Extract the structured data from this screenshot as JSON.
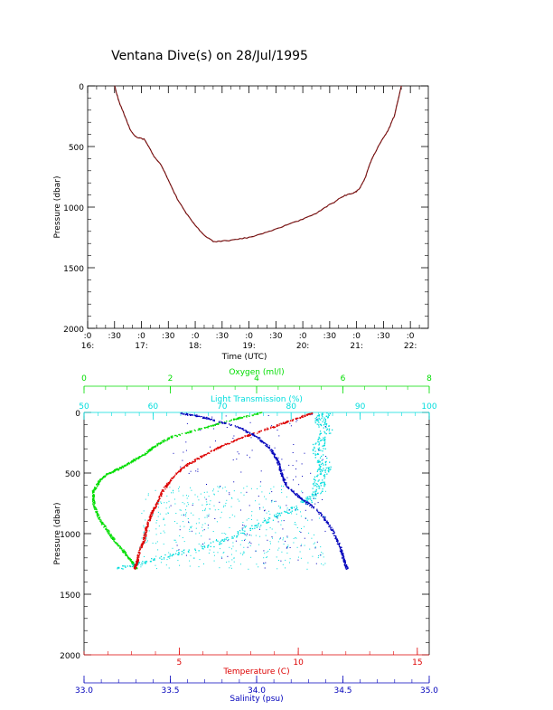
{
  "title": "Ventana Dive(s) on 28/Jul/1995",
  "chart_data": [
    {
      "type": "line",
      "ylabel": "Pressure (dbar)",
      "xlabel": "Time (UTC)",
      "ylim": [
        2000,
        0
      ],
      "xlim": [
        "16:00",
        "22:20"
      ],
      "yticks": [
        "0",
        "500",
        "1000",
        "1500",
        "2000"
      ],
      "xticks": [
        {
          "top": ":0",
          "bottom": "16:"
        },
        {
          "top": ":30",
          "bottom": ""
        },
        {
          "top": ":0",
          "bottom": "17:"
        },
        {
          "top": ":30",
          "bottom": ""
        },
        {
          "top": ":0",
          "bottom": "18:"
        },
        {
          "top": ":30",
          "bottom": ""
        },
        {
          "top": ":0",
          "bottom": "19:"
        },
        {
          "top": ":30",
          "bottom": ""
        },
        {
          "top": ":0",
          "bottom": "20:"
        },
        {
          "top": ":30",
          "bottom": ""
        },
        {
          "top": ":0",
          "bottom": "21:"
        },
        {
          "top": ":30",
          "bottom": ""
        },
        {
          "top": ":0",
          "bottom": "22:"
        }
      ],
      "series": [
        {
          "color": "#8b1a1a",
          "x": [
            "16:30",
            "16:35",
            "16:42",
            "16:48",
            "16:54",
            "17:03",
            "17:08",
            "17:14",
            "17:22",
            "17:30",
            "17:40",
            "17:50",
            "18:00",
            "18:10",
            "18:20",
            "18:30",
            "18:45",
            "19:00",
            "19:15",
            "19:30",
            "19:45",
            "20:00",
            "20:15",
            "20:25",
            "20:35",
            "20:45",
            "20:55",
            "21:00",
            "21:04",
            "21:10",
            "21:16",
            "21:20",
            "21:28",
            "21:35",
            "21:42",
            "21:50"
          ],
          "y": [
            0,
            130,
            260,
            370,
            420,
            440,
            500,
            580,
            650,
            780,
            930,
            1050,
            1150,
            1230,
            1285,
            1280,
            1270,
            1250,
            1220,
            1180,
            1140,
            1100,
            1050,
            1000,
            960,
            910,
            885,
            870,
            840,
            750,
            620,
            560,
            450,
            370,
            250,
            0
          ]
        }
      ]
    },
    {
      "type": "scatter",
      "ylabel": "Pressure (dbar)",
      "ylim": [
        2000,
        0
      ],
      "yticks": [
        "0",
        "500",
        "1000",
        "1500",
        "2000"
      ],
      "axes": [
        {
          "name": "Oxygen (ml/l)",
          "position": "top",
          "color": "#00dd00",
          "range": [
            0,
            8
          ],
          "ticks": [
            "0",
            "2",
            "4",
            "6",
            "8"
          ]
        },
        {
          "name": "Light Transmission (%)",
          "position": "top",
          "color": "#00dddd",
          "range": [
            50,
            100
          ],
          "ticks": [
            "50",
            "60",
            "70",
            "80",
            "90",
            "100"
          ]
        },
        {
          "name": "Temperature (C)",
          "position": "bottom",
          "color": "#dd0000",
          "range": [
            1,
            15.5
          ],
          "ticks": [
            "5",
            "10",
            "15"
          ]
        },
        {
          "name": "Salinity (psu)",
          "position": "bottom",
          "color": "#0000bb",
          "range": [
            33.0,
            35.0
          ],
          "ticks": [
            "33.0",
            "33.5",
            "34.0",
            "34.5",
            "35.0"
          ]
        }
      ],
      "series": [
        {
          "axis": "Oxygen (ml/l)",
          "color": "#00dd00",
          "x": [
            4.1,
            3.5,
            2.8,
            2.0,
            1.6,
            1.4,
            1.1,
            0.8,
            0.55,
            0.35,
            0.2,
            0.22,
            0.35,
            0.55,
            0.75,
            0.95,
            1.1,
            1.2
          ],
          "y": [
            0,
            50,
            120,
            200,
            280,
            340,
            400,
            460,
            500,
            560,
            650,
            760,
            880,
            980,
            1080,
            1160,
            1230,
            1285
          ]
        },
        {
          "axis": "Light Transmission (%)",
          "color": "#00dddd",
          "x": [
            85,
            84,
            85,
            84,
            84,
            85,
            84,
            84,
            83,
            80,
            76,
            72,
            68,
            62,
            58,
            55
          ],
          "y": [
            0,
            60,
            150,
            250,
            350,
            450,
            520,
            600,
            700,
            800,
            900,
            1000,
            1100,
            1180,
            1240,
            1285
          ]
        },
        {
          "axis": "Temperature (C)",
          "color": "#dd0000",
          "x": [
            10.6,
            10.0,
            9.0,
            7.8,
            6.8,
            6.0,
            5.3,
            4.7,
            4.3,
            4.0,
            3.8,
            3.6,
            3.5,
            3.3,
            3.2,
            3.1
          ],
          "y": [
            0,
            40,
            110,
            190,
            270,
            350,
            430,
            530,
            640,
            760,
            840,
            950,
            1050,
            1150,
            1230,
            1285
          ]
        },
        {
          "axis": "Salinity (psu)",
          "color": "#0000bb",
          "x": [
            33.55,
            33.7,
            33.9,
            34.0,
            34.08,
            34.12,
            34.14,
            34.17,
            34.25,
            34.35,
            34.43,
            34.48,
            34.5,
            34.52
          ],
          "y": [
            0,
            40,
            120,
            200,
            300,
            400,
            500,
            600,
            700,
            800,
            950,
            1100,
            1200,
            1285
          ]
        }
      ]
    }
  ]
}
